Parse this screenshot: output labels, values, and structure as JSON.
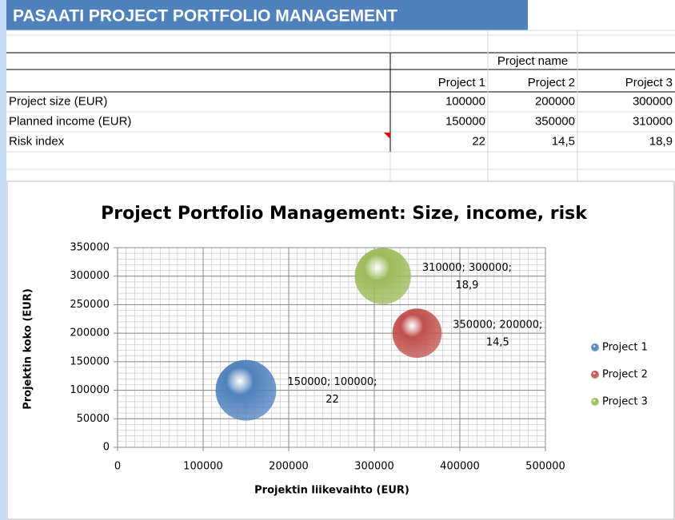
{
  "header": {
    "title": "PASAATI PROJECT PORTFOLIO MANAGEMENT"
  },
  "table": {
    "group_header": "Project name",
    "columns": [
      "Project 1",
      "Project 2",
      "Project 3"
    ],
    "rows": [
      {
        "label": "Project size (EUR)",
        "cells": [
          "100000",
          "200000",
          "300000"
        ]
      },
      {
        "label": "Planned income (EUR)",
        "cells": [
          "150000",
          "350000",
          "310000"
        ]
      },
      {
        "label": "Risk index",
        "cells": [
          "22",
          "14,5",
          "18,9"
        ]
      }
    ]
  },
  "chart_data": {
    "type": "bubble",
    "title": "Project Portfolio Management: Size, income, risk",
    "x_label": "Projektin liikevaihto (EUR)",
    "y_label": "Projektin koko (EUR)",
    "xlim": [
      0,
      500000
    ],
    "xticks": [
      0,
      100000,
      200000,
      300000,
      400000,
      500000
    ],
    "ylim": [
      0,
      350000
    ],
    "yticks": [
      0,
      50000,
      100000,
      150000,
      200000,
      250000,
      300000,
      350000
    ],
    "grid": true,
    "minor_grid": true,
    "legend": "right",
    "series": [
      {
        "name": "Project 1",
        "color": "#4f81bd",
        "x": [
          150000
        ],
        "values": [
          100000
        ],
        "sizes": [
          22
        ],
        "value_labels": [
          [
            "150000; 100000;",
            "22"
          ]
        ]
      },
      {
        "name": "Project 2",
        "color": "#c0504d",
        "x": [
          350000
        ],
        "values": [
          200000
        ],
        "sizes": [
          14.5
        ],
        "value_labels": [
          [
            "350000; 200000;",
            "14,5"
          ]
        ]
      },
      {
        "name": "Project 3",
        "color": "#9bbb59",
        "x": [
          310000
        ],
        "values": [
          300000
        ],
        "sizes": [
          18.9
        ],
        "value_labels": [
          [
            "310000; 300000;",
            "18,9"
          ]
        ]
      }
    ]
  }
}
